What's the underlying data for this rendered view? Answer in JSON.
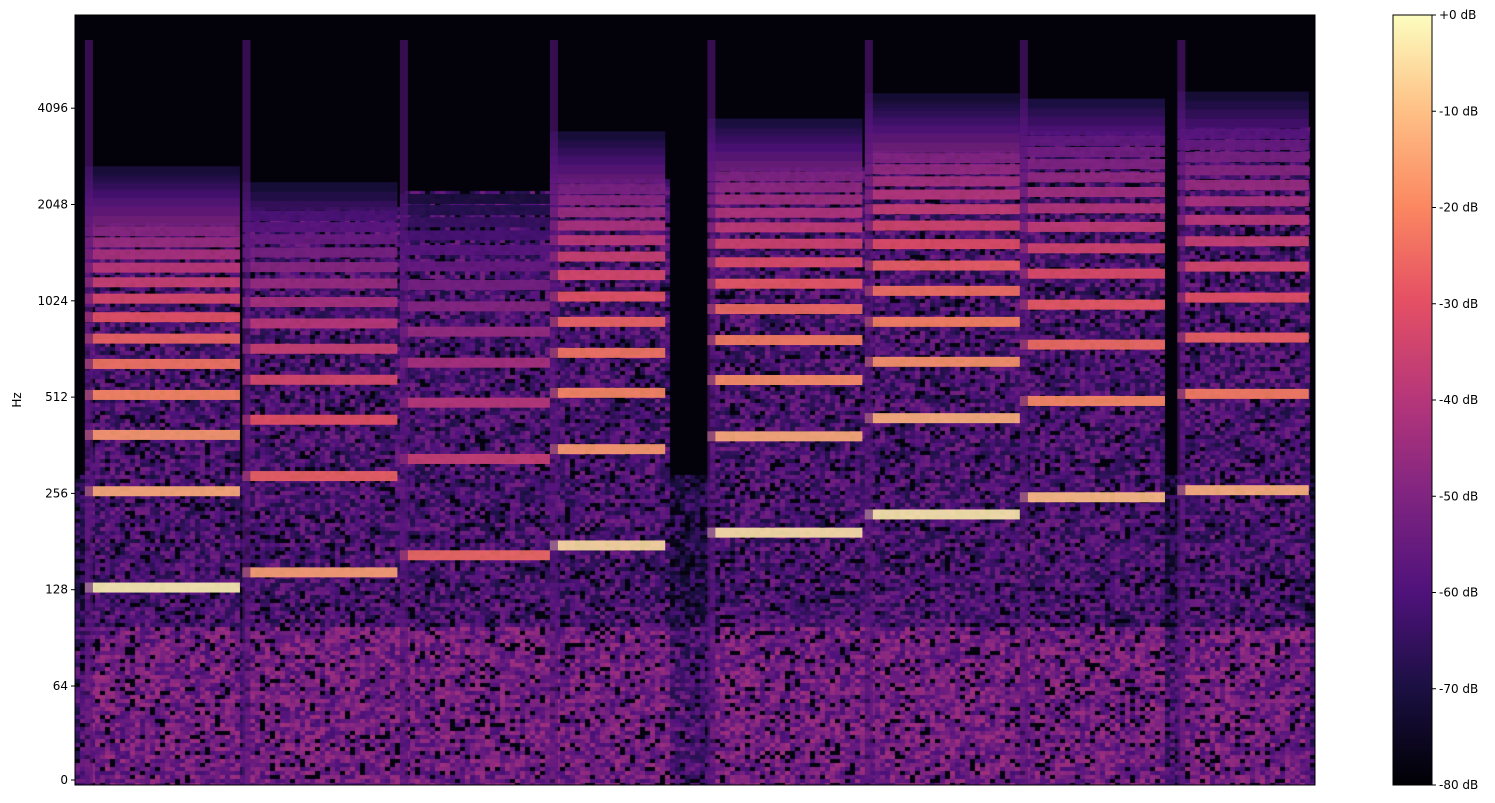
{
  "chart_data": {
    "type": "heatmap",
    "title": "",
    "xlabel": "",
    "ylabel": "Hz",
    "y_scale": "log2 (linear below 64 Hz)",
    "y_ticks": [
      0,
      64,
      128,
      256,
      512,
      1024,
      2048,
      4096
    ],
    "y_tick_labels": [
      "0",
      "64",
      "128",
      "256",
      "512",
      "1024",
      "2048",
      "4096"
    ],
    "x_ticks": [],
    "colormap": "magma",
    "colorbar": {
      "range_db": [
        -80,
        0
      ],
      "ticks": [
        0,
        -10,
        -20,
        -30,
        -40,
        -50,
        -60,
        -70,
        -80
      ],
      "tick_labels": [
        "+0 dB",
        "-10 dB",
        "-20 dB",
        "-30 dB",
        "-40 dB",
        "-50 dB",
        "-60 dB",
        "-70 dB",
        "-80 dB"
      ]
    },
    "time_unit": "fraction of clip duration",
    "notes": [
      {
        "t_start": 0.008,
        "t_end": 0.133,
        "f0_hz": 130,
        "peak_db": -2
      },
      {
        "t_start": 0.135,
        "t_end": 0.26,
        "f0_hz": 145,
        "peak_db": -15
      },
      {
        "t_start": 0.262,
        "t_end": 0.383,
        "f0_hz": 164,
        "peak_db": -25
      },
      {
        "t_start": 0.383,
        "t_end": 0.476,
        "f0_hz": 176,
        "peak_db": -5
      },
      {
        "t_start": 0.51,
        "t_end": 0.635,
        "f0_hz": 193,
        "peak_db": -4
      },
      {
        "t_start": 0.637,
        "t_end": 0.762,
        "f0_hz": 220,
        "peak_db": -3
      },
      {
        "t_start": 0.762,
        "t_end": 0.879,
        "f0_hz": 249,
        "peak_db": -10
      },
      {
        "t_start": 0.889,
        "t_end": 0.995,
        "f0_hz": 262,
        "peak_db": -12
      }
    ],
    "background_db": -75
  }
}
